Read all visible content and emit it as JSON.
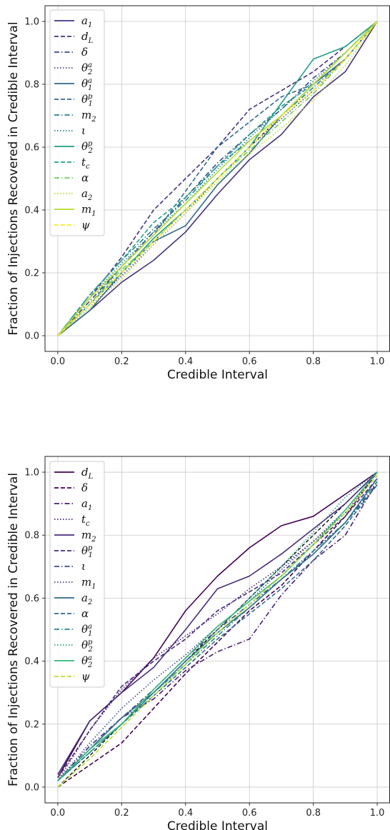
{
  "chart_data": [
    {
      "type": "line",
      "xlabel": "Credible Interval",
      "ylabel": "Fraction of Injections Recovered in Credible Interval",
      "xlim": [
        -0.04,
        1.04
      ],
      "ylim": [
        -0.05,
        1.05
      ],
      "xticks": [
        "0.0",
        "0.2",
        "0.4",
        "0.6",
        "0.8",
        "1.0"
      ],
      "yticks": [
        "0.0",
        "0.2",
        "0.4",
        "0.6",
        "0.8",
        "1.0"
      ],
      "grid": true,
      "legend": "top-left",
      "reference_line": {
        "x": [
          0,
          1
        ],
        "y": [
          0,
          1
        ],
        "color": "#000000",
        "style": "dashed"
      },
      "series": [
        {
          "name": "a_1",
          "color": "#46327e",
          "style": "solid",
          "x": [
            0,
            0.1,
            0.2,
            0.3,
            0.4,
            0.5,
            0.6,
            0.7,
            0.8,
            0.9,
            1.0
          ],
          "y": [
            0.0,
            0.08,
            0.17,
            0.24,
            0.33,
            0.45,
            0.56,
            0.64,
            0.76,
            0.84,
            1.0
          ]
        },
        {
          "name": "d_L",
          "color": "#46327e",
          "style": "dashed",
          "x": [
            0,
            0.1,
            0.2,
            0.3,
            0.4,
            0.5,
            0.6,
            0.7,
            0.8,
            0.9,
            1.0
          ],
          "y": [
            0.0,
            0.12,
            0.25,
            0.4,
            0.5,
            0.6,
            0.72,
            0.78,
            0.84,
            0.92,
            1.0
          ]
        },
        {
          "name": "δ",
          "color": "#3e4989",
          "style": "dashdot",
          "x": [
            0,
            0.1,
            0.2,
            0.3,
            0.4,
            0.5,
            0.6,
            0.7,
            0.8,
            0.9,
            1.0
          ],
          "y": [
            0.0,
            0.11,
            0.22,
            0.33,
            0.44,
            0.55,
            0.64,
            0.72,
            0.82,
            0.9,
            1.0
          ]
        },
        {
          "name": "θ^a_2",
          "color": "#3e4989",
          "style": "dotted",
          "x": [
            0,
            0.1,
            0.2,
            0.3,
            0.4,
            0.5,
            0.6,
            0.7,
            0.8,
            0.9,
            1.0
          ],
          "y": [
            0.0,
            0.09,
            0.19,
            0.29,
            0.39,
            0.5,
            0.6,
            0.69,
            0.78,
            0.88,
            1.0
          ]
        },
        {
          "name": "θ^a_1",
          "color": "#31688e",
          "style": "solid",
          "x": [
            0,
            0.1,
            0.2,
            0.3,
            0.4,
            0.5,
            0.6,
            0.7,
            0.8,
            0.9,
            1.0
          ],
          "y": [
            0.0,
            0.08,
            0.2,
            0.3,
            0.35,
            0.48,
            0.58,
            0.7,
            0.8,
            0.88,
            1.0
          ]
        },
        {
          "name": "θ^p_1",
          "color": "#31688e",
          "style": "dashed",
          "x": [
            0,
            0.1,
            0.2,
            0.3,
            0.4,
            0.5,
            0.6,
            0.7,
            0.8,
            0.9,
            1.0
          ],
          "y": [
            0.0,
            0.1,
            0.22,
            0.32,
            0.46,
            0.6,
            0.68,
            0.76,
            0.8,
            0.88,
            1.0
          ]
        },
        {
          "name": "m_2",
          "color": "#26828e",
          "style": "dashdot",
          "x": [
            0,
            0.1,
            0.2,
            0.3,
            0.4,
            0.5,
            0.6,
            0.7,
            0.8,
            0.9,
            1.0
          ],
          "y": [
            0.0,
            0.13,
            0.24,
            0.34,
            0.43,
            0.54,
            0.62,
            0.7,
            0.79,
            0.88,
            1.0
          ]
        },
        {
          "name": "ι",
          "color": "#26828e",
          "style": "dotted",
          "x": [
            0,
            0.1,
            0.2,
            0.3,
            0.4,
            0.5,
            0.6,
            0.7,
            0.8,
            0.9,
            1.0
          ],
          "y": [
            0.0,
            0.12,
            0.23,
            0.33,
            0.42,
            0.53,
            0.63,
            0.72,
            0.81,
            0.9,
            1.0
          ]
        },
        {
          "name": "θ^p_2",
          "color": "#1f9e89",
          "style": "solid",
          "x": [
            0,
            0.1,
            0.2,
            0.3,
            0.4,
            0.5,
            0.6,
            0.7,
            0.8,
            0.9,
            1.0
          ],
          "y": [
            0.0,
            0.1,
            0.2,
            0.31,
            0.4,
            0.5,
            0.6,
            0.74,
            0.88,
            0.92,
            1.0
          ]
        },
        {
          "name": "t_c",
          "color": "#1f9e89",
          "style": "dashed",
          "x": [
            0,
            0.1,
            0.2,
            0.3,
            0.4,
            0.5,
            0.6,
            0.7,
            0.8,
            0.9,
            1.0
          ],
          "y": [
            0.0,
            0.13,
            0.24,
            0.36,
            0.44,
            0.54,
            0.64,
            0.73,
            0.8,
            0.9,
            1.0
          ]
        },
        {
          "name": "α",
          "color": "#6ece58",
          "style": "dashdot",
          "x": [
            0,
            0.1,
            0.2,
            0.3,
            0.4,
            0.5,
            0.6,
            0.7,
            0.8,
            0.9,
            1.0
          ],
          "y": [
            0.0,
            0.1,
            0.21,
            0.3,
            0.4,
            0.5,
            0.59,
            0.68,
            0.77,
            0.88,
            1.0
          ]
        },
        {
          "name": "a_2",
          "color": "#b5de2b",
          "style": "dotted",
          "x": [
            0,
            0.1,
            0.2,
            0.3,
            0.4,
            0.5,
            0.6,
            0.7,
            0.8,
            0.9,
            1.0
          ],
          "y": [
            0.0,
            0.09,
            0.18,
            0.29,
            0.39,
            0.49,
            0.58,
            0.66,
            0.75,
            0.86,
            1.0
          ]
        },
        {
          "name": "m_1",
          "color": "#b5de2b",
          "style": "solid",
          "x": [
            0,
            0.1,
            0.2,
            0.3,
            0.4,
            0.5,
            0.6,
            0.7,
            0.8,
            0.9,
            1.0
          ],
          "y": [
            0.0,
            0.12,
            0.22,
            0.32,
            0.42,
            0.52,
            0.62,
            0.7,
            0.8,
            0.9,
            1.0
          ]
        },
        {
          "name": "ψ",
          "color": "#fde725",
          "style": "dashed",
          "x": [
            0,
            0.1,
            0.2,
            0.3,
            0.4,
            0.5,
            0.6,
            0.7,
            0.8,
            0.9,
            1.0
          ],
          "y": [
            0.0,
            0.1,
            0.2,
            0.3,
            0.4,
            0.5,
            0.6,
            0.7,
            0.78,
            0.88,
            1.0
          ]
        }
      ]
    },
    {
      "type": "line",
      "xlabel": "Credible Interval",
      "ylabel": "Fraction of Injections Recovered in Credible Interval",
      "xlim": [
        -0.04,
        1.04
      ],
      "ylim": [
        -0.05,
        1.05
      ],
      "xticks": [
        "0.0",
        "0.2",
        "0.4",
        "0.6",
        "0.8",
        "1.0"
      ],
      "yticks": [
        "0.0",
        "0.2",
        "0.4",
        "0.6",
        "0.8",
        "1.0"
      ],
      "grid": true,
      "legend": "top-left",
      "reference_line": {
        "x": [
          0,
          1
        ],
        "y": [
          0,
          1
        ],
        "color": "#000000",
        "style": "dashed"
      },
      "series": [
        {
          "name": "d_L",
          "color": "#440154",
          "style": "solid",
          "x": [
            0,
            0.1,
            0.2,
            0.3,
            0.4,
            0.5,
            0.6,
            0.7,
            0.8,
            0.9,
            1.0
          ],
          "y": [
            0.03,
            0.21,
            0.3,
            0.41,
            0.56,
            0.67,
            0.76,
            0.83,
            0.86,
            0.93,
            1.0
          ]
        },
        {
          "name": "δ",
          "color": "#440154",
          "style": "dashed",
          "x": [
            0,
            0.1,
            0.2,
            0.3,
            0.4,
            0.5,
            0.6,
            0.7,
            0.8,
            0.9,
            1.0
          ],
          "y": [
            0.0,
            0.07,
            0.14,
            0.25,
            0.36,
            0.46,
            0.56,
            0.64,
            0.75,
            0.86,
            1.0
          ]
        },
        {
          "name": "a_1",
          "color": "#481f70",
          "style": "dashdot",
          "x": [
            0,
            0.1,
            0.2,
            0.3,
            0.4,
            0.5,
            0.6,
            0.7,
            0.8,
            0.9,
            1.0
          ],
          "y": [
            0.02,
            0.13,
            0.22,
            0.28,
            0.37,
            0.43,
            0.47,
            0.61,
            0.72,
            0.8,
            0.97
          ]
        },
        {
          "name": "t_c",
          "color": "#481f70",
          "style": "dotted",
          "x": [
            0,
            0.1,
            0.2,
            0.3,
            0.4,
            0.5,
            0.6,
            0.7,
            0.8,
            0.9,
            1.0
          ],
          "y": [
            0.02,
            0.18,
            0.31,
            0.41,
            0.48,
            0.55,
            0.63,
            0.7,
            0.78,
            0.87,
            1.0
          ]
        },
        {
          "name": "m_2",
          "color": "#472d7b",
          "style": "solid",
          "x": [
            0,
            0.1,
            0.2,
            0.3,
            0.4,
            0.5,
            0.6,
            0.7,
            0.8,
            0.9,
            1.0
          ],
          "y": [
            0.04,
            0.21,
            0.3,
            0.38,
            0.5,
            0.63,
            0.67,
            0.74,
            0.82,
            0.9,
            1.0
          ]
        },
        {
          "name": "θ^p_1",
          "color": "#472d7b",
          "style": "dashed",
          "x": [
            0,
            0.1,
            0.2,
            0.3,
            0.4,
            0.5,
            0.6,
            0.7,
            0.8,
            0.9,
            1.0
          ],
          "y": [
            0.03,
            0.18,
            0.32,
            0.4,
            0.47,
            0.56,
            0.62,
            0.68,
            0.77,
            0.86,
            0.98
          ]
        },
        {
          "name": "ι",
          "color": "#3e4989",
          "style": "dashdot",
          "x": [
            0,
            0.1,
            0.2,
            0.3,
            0.4,
            0.5,
            0.6,
            0.7,
            0.8,
            0.9,
            1.0
          ],
          "y": [
            0.02,
            0.13,
            0.22,
            0.31,
            0.41,
            0.5,
            0.58,
            0.66,
            0.75,
            0.84,
            0.96
          ]
        },
        {
          "name": "m_1",
          "color": "#3e4989",
          "style": "dotted",
          "x": [
            0,
            0.1,
            0.2,
            0.3,
            0.4,
            0.5,
            0.6,
            0.7,
            0.8,
            0.9,
            1.0
          ],
          "y": [
            0.02,
            0.14,
            0.25,
            0.34,
            0.42,
            0.51,
            0.59,
            0.69,
            0.78,
            0.88,
            1.0
          ]
        },
        {
          "name": "a_2",
          "color": "#31688e",
          "style": "solid",
          "x": [
            0,
            0.1,
            0.2,
            0.3,
            0.4,
            0.5,
            0.6,
            0.7,
            0.8,
            0.9,
            1.0
          ],
          "y": [
            0.02,
            0.12,
            0.22,
            0.3,
            0.4,
            0.49,
            0.57,
            0.66,
            0.74,
            0.84,
            0.98
          ]
        },
        {
          "name": "α",
          "color": "#31688e",
          "style": "dashed",
          "x": [
            0,
            0.1,
            0.2,
            0.3,
            0.4,
            0.5,
            0.6,
            0.7,
            0.8,
            0.9,
            1.0
          ],
          "y": [
            0.02,
            0.11,
            0.2,
            0.29,
            0.38,
            0.47,
            0.55,
            0.63,
            0.72,
            0.83,
            0.96
          ]
        },
        {
          "name": "θ^a_1",
          "color": "#26828e",
          "style": "dashdot",
          "x": [
            0,
            0.1,
            0.2,
            0.3,
            0.4,
            0.5,
            0.6,
            0.7,
            0.8,
            0.9,
            1.0
          ],
          "y": [
            0.02,
            0.11,
            0.2,
            0.3,
            0.39,
            0.48,
            0.57,
            0.66,
            0.75,
            0.84,
            0.97
          ]
        },
        {
          "name": "θ^p_2",
          "color": "#1f9e89",
          "style": "dotted",
          "x": [
            0,
            0.1,
            0.2,
            0.3,
            0.4,
            0.5,
            0.6,
            0.7,
            0.8,
            0.9,
            1.0
          ],
          "y": [
            0.02,
            0.11,
            0.2,
            0.3,
            0.39,
            0.5,
            0.6,
            0.7,
            0.81,
            0.92,
            1.0
          ]
        },
        {
          "name": "θ^a_2",
          "color": "#35b779",
          "style": "solid",
          "x": [
            0,
            0.1,
            0.2,
            0.3,
            0.4,
            0.5,
            0.6,
            0.7,
            0.8,
            0.9,
            1.0
          ],
          "y": [
            0.02,
            0.12,
            0.2,
            0.31,
            0.41,
            0.51,
            0.59,
            0.67,
            0.77,
            0.88,
            1.0
          ]
        },
        {
          "name": "ψ",
          "color": "#b5de2b",
          "style": "dashed",
          "x": [
            0,
            0.1,
            0.2,
            0.3,
            0.4,
            0.5,
            0.6,
            0.7,
            0.8,
            0.9,
            1.0
          ],
          "y": [
            0.0,
            0.09,
            0.19,
            0.29,
            0.39,
            0.49,
            0.58,
            0.67,
            0.77,
            0.87,
            0.99
          ]
        }
      ]
    }
  ]
}
